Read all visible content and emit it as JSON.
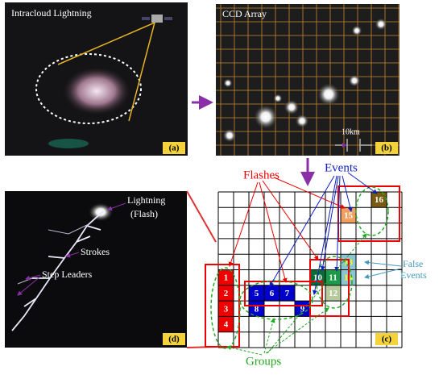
{
  "panel_a": {
    "title": "Intracloud Lightning",
    "tag": "(a)"
  },
  "panel_b": {
    "title": "CCD Array",
    "scale": "10km",
    "tag": "(b)"
  },
  "panel_d": {
    "lightning": "Lightning",
    "flash": "(Flash)",
    "strokes": "Strokes",
    "step_leaders": "Step Leaders",
    "tag": "(d)"
  },
  "panel_c": {
    "flashes": "Flashes",
    "events": "Events",
    "false_events": [
      "False",
      "Events"
    ],
    "groups": "Groups",
    "tag": "(c)",
    "cells": [
      "1",
      "2",
      "3",
      "4",
      "5",
      "6",
      "7",
      "8",
      "9",
      "10",
      "11",
      "12",
      "13",
      "14",
      "15",
      "16"
    ]
  }
}
